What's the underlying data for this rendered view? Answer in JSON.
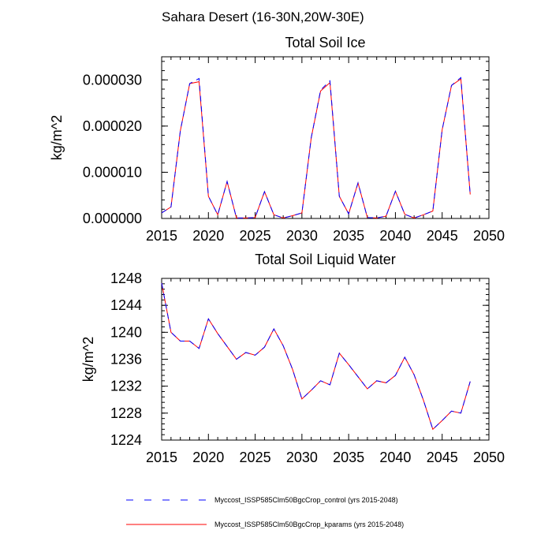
{
  "figure_title": "Sahara Desert (16-30N,20W-30E)",
  "legend": [
    {
      "label": "Myccost_ISSP585Clm50BgcCrop_control (yrs 2015-2048)",
      "color": "#0000ff",
      "style": "dashed"
    },
    {
      "label": "Myccost_ISSP585Clm50BgcCrop_kparams (yrs 2015-2048)",
      "color": "#ff0000",
      "style": "solid"
    }
  ],
  "chart_data": [
    {
      "type": "line",
      "title": "Total Soil Ice",
      "ylabel": "kg/m^2",
      "xlabel": "",
      "xlim": [
        2015,
        2050
      ],
      "ylim": [
        0,
        3.5e-05
      ],
      "xticks": [
        2015,
        2020,
        2025,
        2030,
        2035,
        2040,
        2045,
        2050
      ],
      "xtick_labels": [
        "2015",
        "2020",
        "2025",
        "2030",
        "2035",
        "2040",
        "2045",
        "2050"
      ],
      "yticks": [
        0,
        1e-05,
        2e-05,
        3e-05
      ],
      "ytick_labels": [
        "0.000000",
        "0.000010",
        "0.000020",
        "0.000030"
      ],
      "x": [
        2015,
        2016,
        2017,
        2018,
        2019,
        2020,
        2021,
        2022,
        2023,
        2024,
        2025,
        2026,
        2027,
        2028,
        2029,
        2030,
        2031,
        2032,
        2033,
        2034,
        2035,
        2036,
        2037,
        2038,
        2039,
        2040,
        2041,
        2042,
        2043,
        2044,
        2045,
        2046,
        2047,
        2048
      ],
      "series": [
        {
          "name": "Myccost_ISSP585Clm50BgcCrop_control (yrs 2015-2048)",
          "color": "#0000ff",
          "dash": true,
          "values": [
            1.2e-06,
            2.5e-06,
            1.9e-05,
            2.92e-05,
            3.03e-05,
            4.8e-06,
            8e-07,
            8e-06,
            1e-07,
            1e-07,
            2e-07,
            5.8e-06,
            8e-07,
            1e-07,
            6e-07,
            1.2e-06,
            1.75e-05,
            2.78e-05,
            2.98e-05,
            4.8e-06,
            1e-06,
            7.7e-06,
            2e-07,
            1e-07,
            5e-07,
            5.9e-06,
            9e-07,
            1e-07,
            8e-07,
            1.6e-06,
            1.92e-05,
            2.88e-05,
            3.05e-05,
            5.2e-06
          ]
        },
        {
          "name": "Myccost_ISSP585Clm50BgcCrop_kparams (yrs 2015-2048)",
          "color": "#ff0000",
          "dash": false,
          "values": [
            1.2e-06,
            2.5e-06,
            1.9e-05,
            2.92e-05,
            2.96e-05,
            4.8e-06,
            8e-07,
            8e-06,
            1e-07,
            1e-07,
            2e-07,
            5.8e-06,
            8e-07,
            1e-07,
            6e-07,
            1.2e-06,
            1.75e-05,
            2.76e-05,
            2.94e-05,
            4.8e-06,
            1e-06,
            7.7e-06,
            2e-07,
            1e-07,
            5e-07,
            5.9e-06,
            9e-07,
            1e-07,
            8e-07,
            1.6e-06,
            1.92e-05,
            2.88e-05,
            3.02e-05,
            5.2e-06
          ]
        }
      ],
      "grid": false
    },
    {
      "type": "line",
      "title": "Total Soil Liquid Water",
      "ylabel": "kg/m^2",
      "xlabel": "",
      "xlim": [
        2015,
        2050
      ],
      "ylim": [
        1224,
        1248
      ],
      "xticks": [
        2015,
        2020,
        2025,
        2030,
        2035,
        2040,
        2045,
        2050
      ],
      "xtick_labels": [
        "2015",
        "2020",
        "2025",
        "2030",
        "2035",
        "2040",
        "2045",
        "2050"
      ],
      "yticks": [
        1224,
        1228,
        1232,
        1236,
        1240,
        1244,
        1248
      ],
      "ytick_labels": [
        "1224",
        "1228",
        "1232",
        "1236",
        "1240",
        "1244",
        "1248"
      ],
      "x": [
        2015,
        2016,
        2017,
        2018,
        2019,
        2020,
        2021,
        2022,
        2023,
        2024,
        2025,
        2026,
        2027,
        2028,
        2029,
        2030,
        2031,
        2032,
        2033,
        2034,
        2035,
        2036,
        2037,
        2038,
        2039,
        2040,
        2041,
        2042,
        2043,
        2044,
        2045,
        2046,
        2047,
        2048
      ],
      "series": [
        {
          "name": "Myccost_ISSP585Clm50BgcCrop_control (yrs 2015-2048)",
          "color": "#0000ff",
          "dash": true,
          "values": [
            1247.3,
            1240.0,
            1238.7,
            1238.7,
            1237.6,
            1242.0,
            1239.8,
            1237.9,
            1236.0,
            1237.0,
            1236.6,
            1237.8,
            1240.5,
            1238.0,
            1234.5,
            1230.1,
            1231.4,
            1232.8,
            1232.2,
            1236.9,
            1235.2,
            1233.4,
            1231.6,
            1232.8,
            1232.5,
            1233.6,
            1236.3,
            1233.7,
            1229.9,
            1225.6,
            1226.9,
            1228.3,
            1228.0,
            1232.7
          ]
        },
        {
          "name": "Myccost_ISSP585Clm50BgcCrop_kparams (yrs 2015-2048)",
          "color": "#ff0000",
          "dash": false,
          "values": [
            1247.3,
            1240.0,
            1238.7,
            1238.7,
            1237.6,
            1242.0,
            1239.8,
            1237.9,
            1236.0,
            1237.0,
            1236.6,
            1237.8,
            1240.5,
            1238.0,
            1234.5,
            1230.1,
            1231.4,
            1232.8,
            1232.2,
            1236.9,
            1235.2,
            1233.4,
            1231.6,
            1232.8,
            1232.5,
            1233.6,
            1236.3,
            1233.7,
            1229.9,
            1225.6,
            1226.9,
            1228.3,
            1228.0,
            1232.7
          ]
        }
      ],
      "grid": false
    }
  ]
}
